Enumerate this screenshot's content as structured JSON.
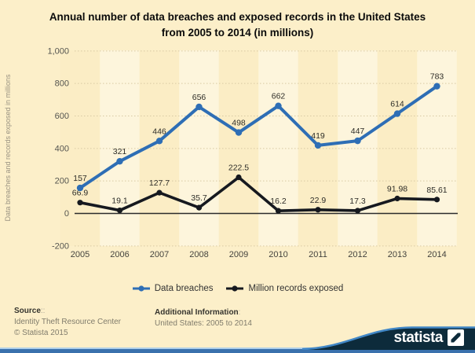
{
  "title": {
    "line1": "Annual number of data breaches and exposed records in the United States",
    "line2": "from 2005 to 2014 (in millions)"
  },
  "chart_data": {
    "type": "line",
    "title": "Annual number of data breaches and exposed records in the United States from 2005 to 2014 (in millions)",
    "categories": [
      "2005",
      "2006",
      "2007",
      "2008",
      "2009",
      "2010",
      "2011",
      "2012",
      "2013",
      "2014"
    ],
    "series": [
      {
        "name": "Data breaches",
        "color": "#2e6eb5",
        "values": [
          157,
          321,
          446,
          656,
          498,
          662,
          419,
          447,
          614,
          783
        ],
        "labels": [
          "157",
          "321",
          "446",
          "656",
          "498",
          "662",
          "419",
          "447",
          "614",
          "783"
        ]
      },
      {
        "name": "Million records exposed",
        "color": "#16191f",
        "values": [
          66.9,
          19.1,
          127.7,
          35.7,
          222.5,
          16.2,
          22.9,
          17.3,
          91.98,
          85.61
        ],
        "labels": [
          "66.9",
          "19.1",
          "127.7",
          "35.7",
          "222.5",
          "16.2",
          "22.9",
          "17.3",
          "91.98",
          "85.61"
        ]
      }
    ],
    "ylabel": "Data breaches and records exposed in millions",
    "xlabel": "",
    "ylim": [
      -200,
      1000
    ],
    "yticks": [
      {
        "value": 1000,
        "label": "1,000"
      },
      {
        "value": 800,
        "label": "800"
      },
      {
        "value": 600,
        "label": "600"
      },
      {
        "value": 400,
        "label": "400"
      },
      {
        "value": 200,
        "label": "200"
      },
      {
        "value": 0,
        "label": "0"
      },
      {
        "value": -200,
        "label": "-200"
      }
    ],
    "grid": "horizontal-dotted",
    "legend_position": "bottom",
    "plot_background": "alternating-vertical-bands"
  },
  "legend": {
    "items": [
      {
        "label": "Data breaches",
        "color": "#2e6eb5"
      },
      {
        "label": "Million records exposed",
        "color": "#16191f"
      }
    ]
  },
  "footer": {
    "source_label": "Source",
    "source_suffix": "::",
    "source_line1": "Identity Theft Resource Center",
    "source_line2": "© Statista 2015",
    "additional_label": "Additional Information",
    "additional_suffix": ":",
    "additional_line1": "United States: 2005 to 2014"
  },
  "branding": {
    "wordmark": "statista"
  },
  "colors": {
    "page_bg": "#fcefc9",
    "band_dark": "#fbedc5",
    "band_light": "#fdf5dc",
    "grid": "#d8c9a3",
    "zero_line": "#2b2b2b",
    "tick_text": "#555550",
    "year_text": "#44433e",
    "data_label": "#2e2d28",
    "y_axis_title": "#9a9382",
    "blue": "#2e6eb5",
    "black": "#16191f",
    "bar_blue": "#3a71ad",
    "bar_light": "#aecfe9",
    "swoosh_navy": "#0d2b3b",
    "swoosh_stroke": "#4187c6"
  }
}
